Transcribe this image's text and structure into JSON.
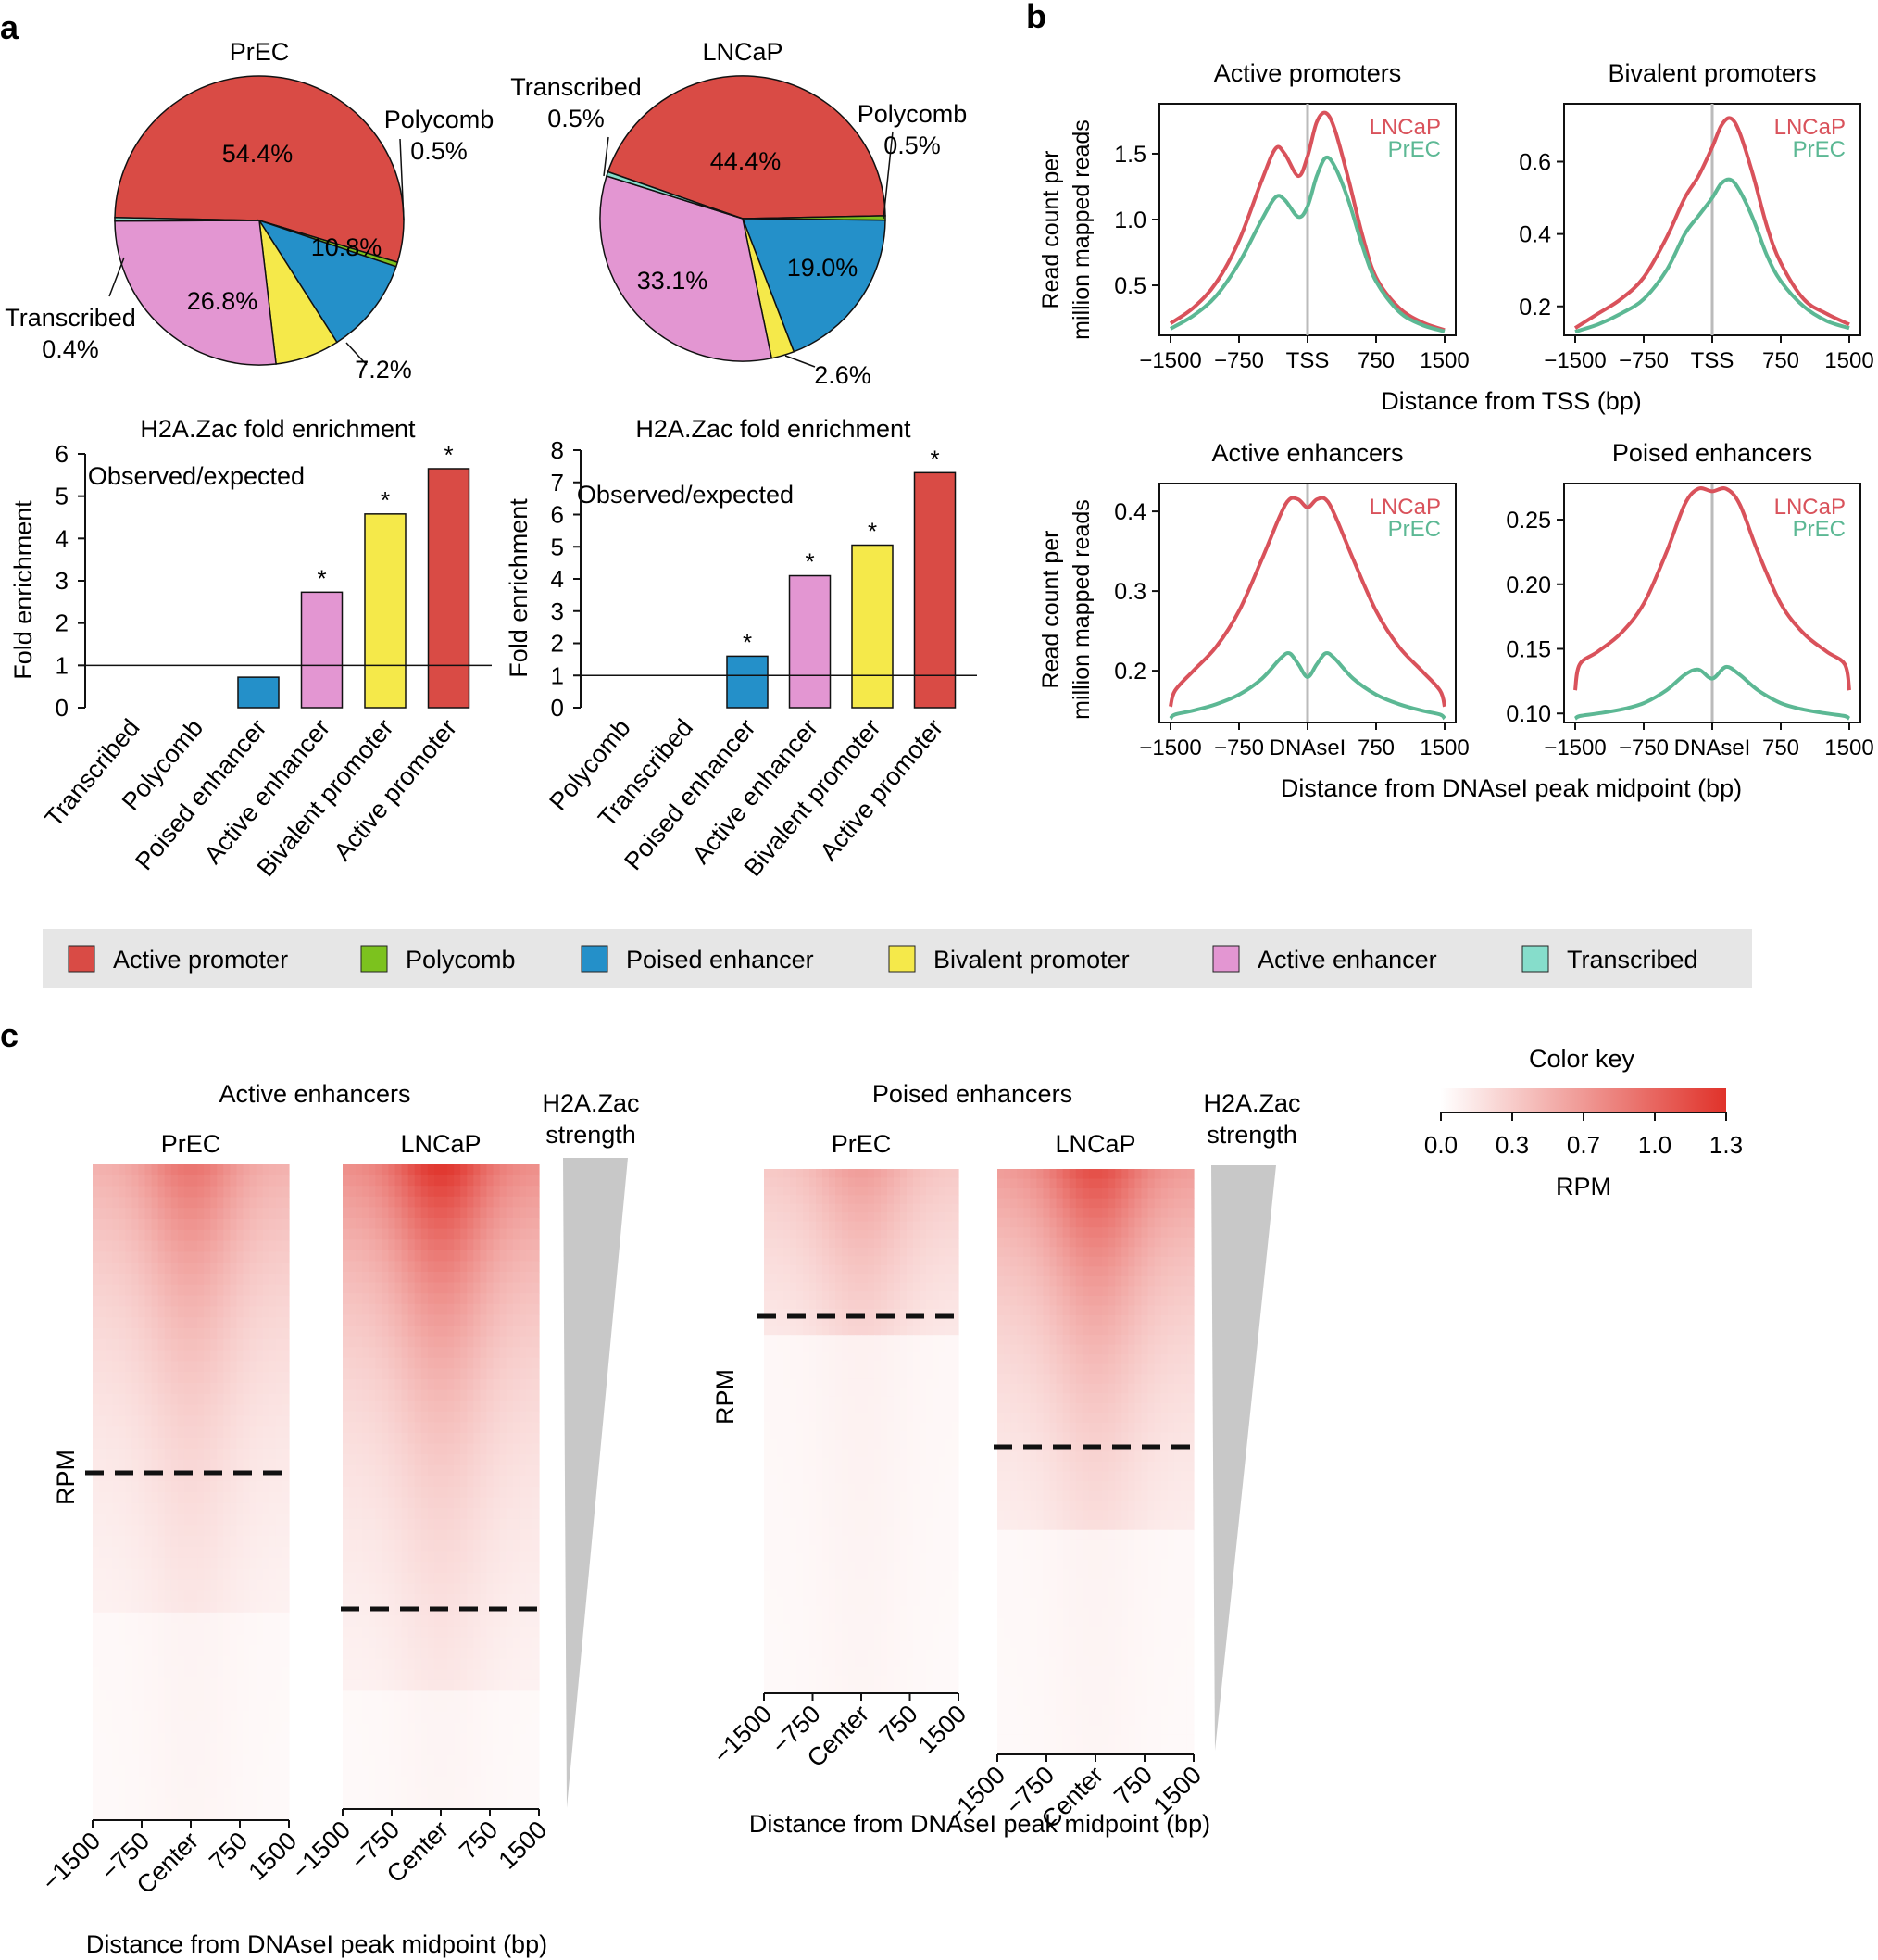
{
  "colors": {
    "active_promoter": "#D94B45",
    "polycomb": "#7CC21E",
    "poised_enhancer": "#2490C9",
    "bivalent_promoter": "#F5E94A",
    "active_enhancer": "#E396D2",
    "transcribed": "#86DDCB",
    "lncap_line": "#D9525B",
    "prec_line": "#5CB894",
    "heat_low": "#FFFFFF",
    "heat_high": "#E0322A"
  },
  "panel_labels": {
    "a": "a",
    "b": "b",
    "c": "c"
  },
  "chart_data": [
    {
      "id": "pie_prec",
      "type": "pie",
      "title": "PrEC",
      "slices": [
        {
          "label": "Active promoter",
          "value": 54.4,
          "display": "54.4%",
          "color_key": "active_promoter"
        },
        {
          "label": "Polycomb",
          "value": 0.5,
          "display": "Polycomb\n0.5%",
          "color_key": "polycomb"
        },
        {
          "label": "Poised enhancer",
          "value": 10.8,
          "display": "10.8%",
          "color_key": "poised_enhancer"
        },
        {
          "label": "Bivalent promoter",
          "value": 7.2,
          "display": "7.2%",
          "color_key": "bivalent_promoter"
        },
        {
          "label": "Active enhancer",
          "value": 26.8,
          "display": "26.8%",
          "color_key": "active_enhancer"
        },
        {
          "label": "Transcribed",
          "value": 0.4,
          "display": "Transcribed\n0.4%",
          "color_key": "transcribed"
        }
      ]
    },
    {
      "id": "pie_lncap",
      "type": "pie",
      "title": "LNCaP",
      "slices": [
        {
          "label": "Active promoter",
          "value": 44.4,
          "display": "44.4%",
          "color_key": "active_promoter"
        },
        {
          "label": "Polycomb",
          "value": 0.5,
          "display": "Polycomb\n0.5%",
          "color_key": "polycomb"
        },
        {
          "label": "Poised enhancer",
          "value": 19.0,
          "display": "19.0%",
          "color_key": "poised_enhancer"
        },
        {
          "label": "Bivalent promoter",
          "value": 2.6,
          "display": "2.6%",
          "color_key": "bivalent_promoter"
        },
        {
          "label": "Active enhancer",
          "value": 33.1,
          "display": "33.1%",
          "color_key": "active_enhancer"
        },
        {
          "label": "Transcribed",
          "value": 0.5,
          "display": "Transcribed\n0.5%",
          "color_key": "transcribed"
        }
      ]
    },
    {
      "id": "bar_prec",
      "type": "bar",
      "title": "H2A.Zac fold enrichment",
      "subtitle": "Observed/expected",
      "ylabel": "Fold enrichment",
      "ylim": [
        0,
        6
      ],
      "yticks": [
        0,
        1,
        2,
        3,
        4,
        5,
        6
      ],
      "reference_line": 1,
      "categories": [
        "Transcribed",
        "Polycomb",
        "Poised enhancer",
        "Active enhancer",
        "Bivalent promoter",
        "Active promoter"
      ],
      "values": [
        0,
        0,
        0.72,
        2.73,
        4.58,
        5.65
      ],
      "significant": [
        false,
        false,
        false,
        true,
        true,
        true
      ],
      "color_keys": [
        "transcribed",
        "polycomb",
        "poised_enhancer",
        "active_enhancer",
        "bivalent_promoter",
        "active_promoter"
      ],
      "sig_marker": "*"
    },
    {
      "id": "bar_lncap",
      "type": "bar",
      "title": "H2A.Zac fold enrichment",
      "subtitle": "Observed/expected",
      "ylabel": "Fold enrichment",
      "ylim": [
        0,
        8
      ],
      "yticks": [
        0,
        1,
        2,
        3,
        4,
        5,
        6,
        7,
        8
      ],
      "reference_line": 1,
      "categories": [
        "Polycomb",
        "Transcribed",
        "Poised enhancer",
        "Active enhancer",
        "Bivalent promoter",
        "Active promoter"
      ],
      "values": [
        0,
        0,
        1.6,
        4.1,
        5.05,
        7.3
      ],
      "significant": [
        false,
        false,
        true,
        true,
        true,
        true
      ],
      "color_keys": [
        "polycomb",
        "transcribed",
        "poised_enhancer",
        "active_enhancer",
        "bivalent_promoter",
        "active_promoter"
      ],
      "sig_marker": "*"
    },
    {
      "id": "line_active_promoters",
      "type": "line",
      "title": "Active promoters",
      "ylim": [
        0.12,
        1.88
      ],
      "yticks": [
        0.5,
        1.0,
        1.5
      ],
      "ytick_labels": [
        "0.5",
        "1.0",
        "1.5"
      ],
      "xlim": [
        -1500,
        1500
      ],
      "xticks": [
        -1500,
        -750,
        0,
        750,
        1500
      ],
      "xtick_labels": [
        "−1500",
        "−750",
        "TSS",
        "750",
        "1500"
      ],
      "x": [
        -1500,
        -1250,
        -1000,
        -750,
        -500,
        -350,
        -250,
        -100,
        0,
        100,
        200,
        300,
        450,
        600,
        750,
        1000,
        1250,
        1500
      ],
      "series": [
        {
          "name": "LNCaP",
          "color_key": "lncap_line",
          "values": [
            0.21,
            0.33,
            0.52,
            0.84,
            1.3,
            1.54,
            1.5,
            1.33,
            1.48,
            1.74,
            1.81,
            1.68,
            1.3,
            0.88,
            0.56,
            0.33,
            0.22,
            0.16
          ]
        },
        {
          "name": "PrEC",
          "color_key": "prec_line",
          "values": [
            0.17,
            0.27,
            0.42,
            0.67,
            1.0,
            1.17,
            1.15,
            1.02,
            1.1,
            1.33,
            1.47,
            1.4,
            1.14,
            0.8,
            0.53,
            0.3,
            0.2,
            0.15
          ]
        }
      ]
    },
    {
      "id": "line_bivalent_promoters",
      "type": "line",
      "title": "Bivalent promoters",
      "ylim": [
        0.12,
        0.76
      ],
      "yticks": [
        0.2,
        0.4,
        0.6
      ],
      "ytick_labels": [
        "0.2",
        "0.4",
        "0.6"
      ],
      "xlim": [
        -1500,
        1500
      ],
      "xticks": [
        -1500,
        -750,
        0,
        750,
        1500
      ],
      "xtick_labels": [
        "−1500",
        "−750",
        "TSS",
        "750",
        "1500"
      ],
      "x": [
        -1500,
        -1250,
        -1000,
        -750,
        -500,
        -300,
        -150,
        0,
        100,
        200,
        300,
        450,
        600,
        750,
        1000,
        1250,
        1500
      ],
      "series": [
        {
          "name": "LNCaP",
          "color_key": "lncap_line",
          "values": [
            0.14,
            0.18,
            0.22,
            0.28,
            0.39,
            0.5,
            0.56,
            0.64,
            0.7,
            0.72,
            0.68,
            0.56,
            0.42,
            0.32,
            0.22,
            0.18,
            0.15
          ]
        },
        {
          "name": "PrEC",
          "color_key": "prec_line",
          "values": [
            0.13,
            0.15,
            0.18,
            0.22,
            0.3,
            0.4,
            0.45,
            0.5,
            0.54,
            0.55,
            0.52,
            0.44,
            0.34,
            0.27,
            0.2,
            0.16,
            0.14
          ]
        }
      ]
    },
    {
      "id": "line_active_enhancers",
      "type": "line",
      "title": "Active enhancers",
      "ylim": [
        0.135,
        0.435
      ],
      "yticks": [
        0.2,
        0.3,
        0.4
      ],
      "ytick_labels": [
        "0.2",
        "0.3",
        "0.4"
      ],
      "xlim": [
        -1500,
        1500
      ],
      "xticks": [
        -1500,
        -750,
        0,
        750,
        1500
      ],
      "xtick_labels": [
        "−1500",
        "−750",
        "DNAseI",
        "750",
        "1500"
      ],
      "x": [
        -1500,
        -1450,
        -1250,
        -1000,
        -750,
        -500,
        -300,
        -200,
        -100,
        0,
        100,
        200,
        300,
        500,
        750,
        1000,
        1250,
        1450,
        1500
      ],
      "series": [
        {
          "name": "LNCaP",
          "color_key": "lncap_line",
          "values": [
            0.155,
            0.175,
            0.2,
            0.23,
            0.275,
            0.34,
            0.395,
            0.415,
            0.415,
            0.405,
            0.415,
            0.415,
            0.395,
            0.34,
            0.275,
            0.23,
            0.2,
            0.175,
            0.155
          ]
        },
        {
          "name": "PrEC",
          "color_key": "prec_line",
          "values": [
            0.14,
            0.145,
            0.15,
            0.158,
            0.17,
            0.19,
            0.215,
            0.222,
            0.208,
            0.192,
            0.208,
            0.222,
            0.215,
            0.19,
            0.17,
            0.158,
            0.15,
            0.145,
            0.14
          ]
        }
      ]
    },
    {
      "id": "line_poised_enhancers",
      "type": "line",
      "title": "Poised enhancers",
      "ylim": [
        0.093,
        0.278
      ],
      "yticks": [
        0.1,
        0.15,
        0.2,
        0.25
      ],
      "ytick_labels": [
        "0.10",
        "0.15",
        "0.20",
        "0.25"
      ],
      "xlim": [
        -1500,
        1500
      ],
      "xticks": [
        -1500,
        -750,
        0,
        750,
        1500
      ],
      "xtick_labels": [
        "−1500",
        "−750",
        "DNAseI",
        "750",
        "1500"
      ],
      "x": [
        -1500,
        -1450,
        -1250,
        -1000,
        -750,
        -500,
        -300,
        -150,
        0,
        150,
        300,
        500,
        750,
        1000,
        1250,
        1450,
        1500
      ],
      "series": [
        {
          "name": "LNCaP",
          "color_key": "lncap_line",
          "values": [
            0.118,
            0.138,
            0.148,
            0.162,
            0.185,
            0.225,
            0.262,
            0.274,
            0.272,
            0.274,
            0.262,
            0.225,
            0.185,
            0.162,
            0.148,
            0.138,
            0.118
          ]
        },
        {
          "name": "PrEC",
          "color_key": "prec_line",
          "values": [
            0.096,
            0.098,
            0.1,
            0.103,
            0.108,
            0.118,
            0.13,
            0.134,
            0.127,
            0.136,
            0.13,
            0.118,
            0.108,
            0.103,
            0.1,
            0.098,
            0.096
          ]
        }
      ]
    },
    {
      "id": "heatmaps",
      "type": "heatmap",
      "color_scale": {
        "min": 0.0,
        "max": 1.3,
        "ticks": [
          "0.0",
          "0.3",
          "0.7",
          "1.0",
          "1.3"
        ],
        "label": "RPM",
        "title": "Color key"
      },
      "panels": [
        {
          "group": "Active enhancers",
          "sample": "PrEC",
          "top_intensity": 0.62,
          "cutoff_fraction": 0.47,
          "lowband_fraction": 0.68
        },
        {
          "group": "Active enhancers",
          "sample": "LNCaP",
          "top_intensity": 0.92,
          "cutoff_fraction": 0.68,
          "lowband_fraction": 0.83
        },
        {
          "group": "Poised enhancers",
          "sample": "PrEC",
          "top_intensity": 0.42,
          "cutoff_fraction": 0.23,
          "lowband_fraction": 0.32
        },
        {
          "group": "Poised enhancers",
          "sample": "LNCaP",
          "top_intensity": 0.8,
          "cutoff_fraction": 0.46,
          "lowband_fraction": 0.62
        }
      ]
    }
  ],
  "text": {
    "b_ylabel_line1": "Read count per",
    "b_ylabel_line2": "million mapped reads",
    "b_xlabel_top": "Distance from TSS (bp)",
    "b_xlabel_bottom": "Distance from DNAseI peak midpoint (bp)",
    "c_group_active": "Active enhancers",
    "c_group_poised": "Poised enhancers",
    "c_sample_prec": "PrEC",
    "c_sample_lncap": "LNCaP",
    "c_strength_line1": "H2A.Zac",
    "c_strength_line2": "strength",
    "c_rpm": "RPM",
    "c_xlabel": "Distance from DNAseI peak midpoint (bp)",
    "c_xticks": [
      "−1500",
      "−750",
      "Center",
      "750",
      "1500"
    ]
  },
  "legend": [
    {
      "label": "Active promoter",
      "color_key": "active_promoter"
    },
    {
      "label": "Polycomb",
      "color_key": "polycomb"
    },
    {
      "label": "Poised enhancer",
      "color_key": "poised_enhancer"
    },
    {
      "label": "Bivalent promoter",
      "color_key": "bivalent_promoter"
    },
    {
      "label": "Active enhancer",
      "color_key": "active_enhancer"
    },
    {
      "label": "Transcribed",
      "color_key": "transcribed"
    }
  ]
}
